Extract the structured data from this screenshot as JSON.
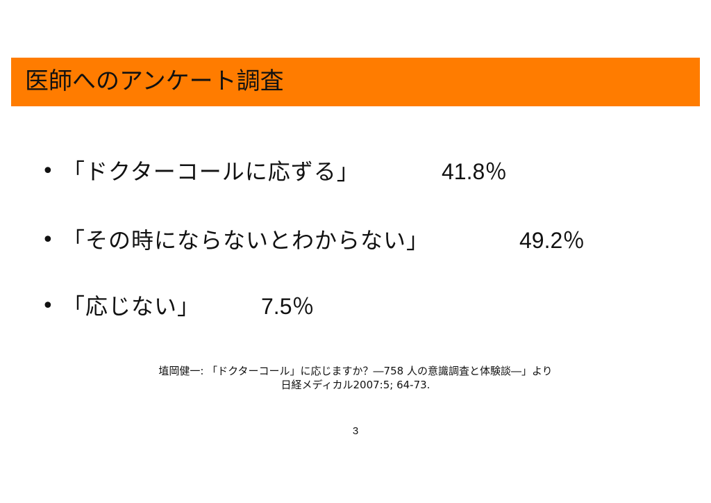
{
  "slide": {
    "title": "医師へのアンケート調査",
    "bullets": [
      {
        "marker": "•",
        "text": "「ドクターコールに応ずる」",
        "value": "41.8％"
      },
      {
        "marker": "•",
        "text": "「その時にならないとわからない」",
        "value": "49.2％"
      },
      {
        "marker": "•",
        "text": "「応じない」",
        "value": "7.5％"
      }
    ],
    "citation": {
      "line1": "埴岡健一: 「ドクターコール」に応じますか？―758 人の意識調査と体験談―」より",
      "line2": "日経メディカル2007:5; 64-73."
    },
    "page_number": "3"
  },
  "colors": {
    "title_bar": "#ff7c00",
    "text": "#111111",
    "background": "#ffffff"
  }
}
